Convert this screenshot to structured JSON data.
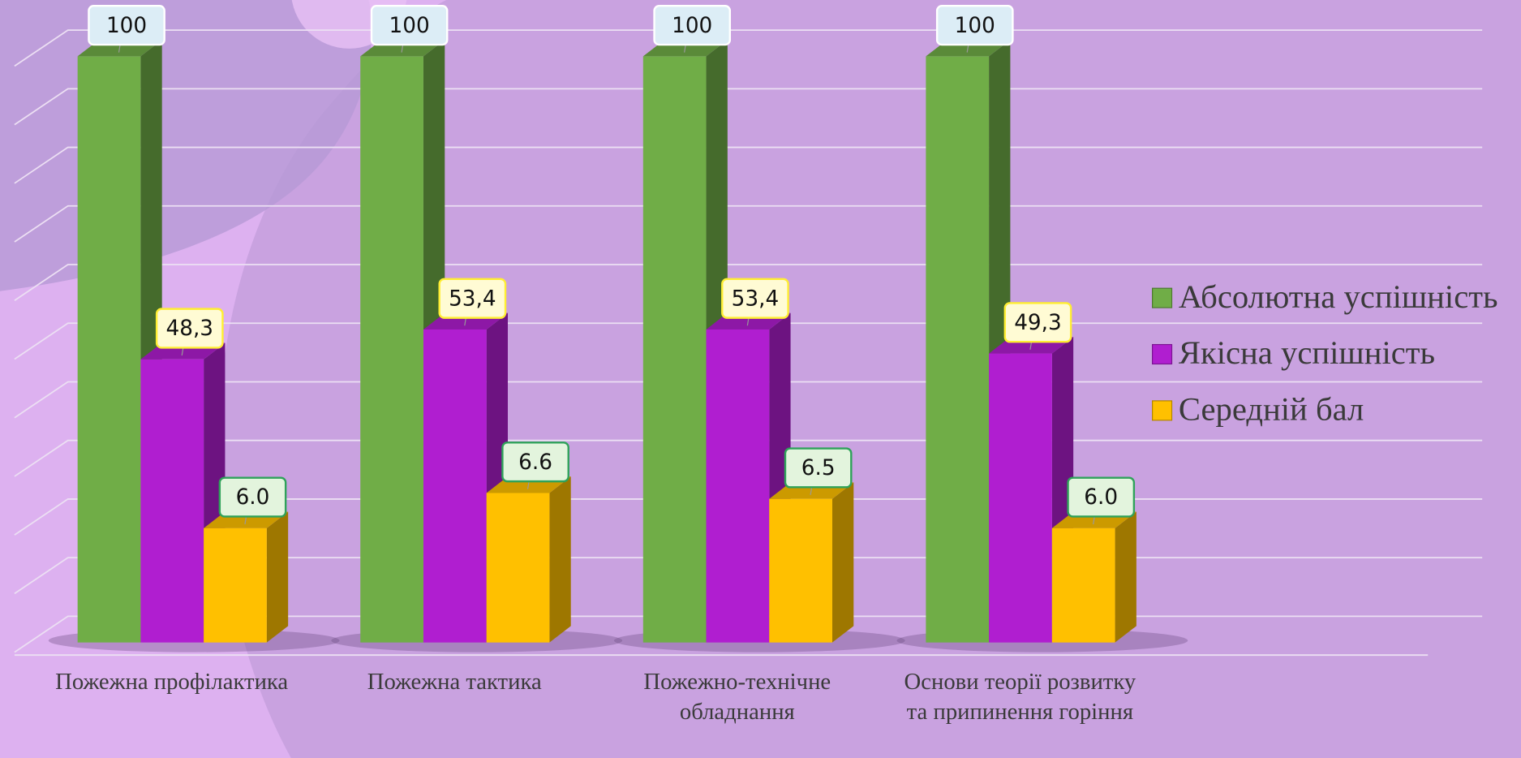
{
  "chart_data": {
    "type": "bar",
    "categories": [
      "Пожежна профілактика",
      "Пожежна тактика",
      "Пожежно-технічне обладнання",
      "Основи теорії розвитку та припинення горіння"
    ],
    "series": [
      {
        "name": "Абсолютна успішність",
        "color": "#70ad47",
        "values": [
          100,
          100,
          100,
          100
        ]
      },
      {
        "name": "Якісна успішність",
        "color": "#b01ed0",
        "values": [
          48.3,
          53.4,
          53.4,
          49.3
        ],
        "value_labels": [
          "48,3",
          "53,4",
          "53,4",
          "49,3"
        ]
      },
      {
        "name": "Середній бал",
        "color": "#ffc000",
        "values": [
          6.0,
          6.6,
          6.5,
          6.0
        ],
        "value_labels": [
          "6.0",
          "6.6",
          "6.5",
          "6.0"
        ],
        "axis": "y2"
      }
    ],
    "ylim": [
      0,
      100
    ],
    "yticks": [
      0,
      10,
      20,
      30,
      40,
      50,
      60,
      70,
      80,
      90,
      100
    ],
    "y2lim": [
      4.05,
      14.05
    ],
    "grid": true,
    "legend": "right"
  }
}
